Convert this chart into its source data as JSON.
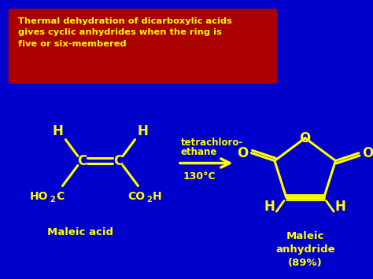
{
  "bg_color": "#0000CC",
  "text_color": "#FFFF00",
  "box_color": "#AA0000",
  "box_text": "Thermal dehydration of dicarboxylic acids\ngives cyclic anhydrides when the ring is\nfive or six-membered",
  "condition_line1": "tetrachloro-",
  "condition_line2": "ethane",
  "condition_line3": "130°C",
  "label_maleic_acid": "Maleic acid",
  "label_maleic_anhydride": "Maleic\nanhydride\n(89%)"
}
